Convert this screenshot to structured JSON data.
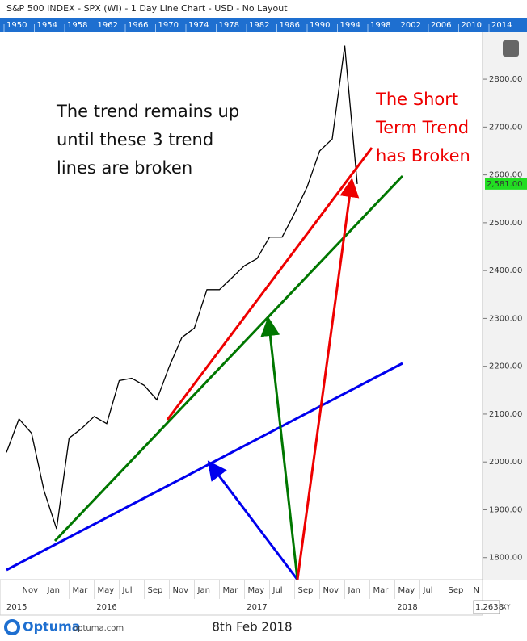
{
  "chart_data": {
    "type": "line",
    "title": "S&P 500 INDEX - SPX (WI) - 1 Day Line Chart - USD - No Layout",
    "overview_years": [
      "1950",
      "1954",
      "1958",
      "1962",
      "1966",
      "1970",
      "1974",
      "1978",
      "1982",
      "1986",
      "1990",
      "1994",
      "1998",
      "2002",
      "2006",
      "2010",
      "2014"
    ],
    "x": [
      "2015-10",
      "2015-11",
      "2015-12",
      "2016-01",
      "2016-02",
      "2016-03",
      "2016-04",
      "2016-05",
      "2016-06",
      "2016-07",
      "2016-08",
      "2016-09",
      "2016-10",
      "2016-11",
      "2016-12",
      "2017-01",
      "2017-02",
      "2017-03",
      "2017-04",
      "2017-05",
      "2017-06",
      "2017-07",
      "2017-08",
      "2017-09",
      "2017-10",
      "2017-11",
      "2017-12",
      "2018-01",
      "2018-02"
    ],
    "series": [
      {
        "name": "SPX",
        "color": "#000000",
        "values": [
          2020,
          2090,
          2060,
          1940,
          1860,
          2050,
          2070,
          2095,
          2080,
          2170,
          2175,
          2160,
          2130,
          2200,
          2260,
          2280,
          2360,
          2360,
          2385,
          2410,
          2425,
          2470,
          2470,
          2520,
          2575,
          2650,
          2675,
          2870,
          2581
        ]
      }
    ],
    "xlim": [
      "2015-10",
      "2018-12"
    ],
    "xticks": [
      {
        "value": "2015-11",
        "label": "Nov"
      },
      {
        "value": "2016-01",
        "label": "Jan"
      },
      {
        "value": "2016-03",
        "label": "Mar"
      },
      {
        "value": "2016-05",
        "label": "May"
      },
      {
        "value": "2016-07",
        "label": "Jul"
      },
      {
        "value": "2016-09",
        "label": "Sep"
      },
      {
        "value": "2016-11",
        "label": "Nov"
      },
      {
        "value": "2017-01",
        "label": "Jan"
      },
      {
        "value": "2017-03",
        "label": "Mar"
      },
      {
        "value": "2017-05",
        "label": "May"
      },
      {
        "value": "2017-07",
        "label": "Jul"
      },
      {
        "value": "2017-09",
        "label": "Sep"
      },
      {
        "value": "2017-11",
        "label": "Nov"
      },
      {
        "value": "2018-01",
        "label": "Jan"
      },
      {
        "value": "2018-03",
        "label": "Mar"
      },
      {
        "value": "2018-05",
        "label": "May"
      },
      {
        "value": "2018-07",
        "label": "Jul"
      },
      {
        "value": "2018-09",
        "label": "Sep"
      },
      {
        "value": "2018-11",
        "label": "N"
      }
    ],
    "year_labels": [
      {
        "value": "2015-10",
        "label": "2015"
      },
      {
        "value": "2016-06",
        "label": "2016"
      },
      {
        "value": "2017-06",
        "label": "2017"
      },
      {
        "value": "2018-06",
        "label": "2018"
      }
    ],
    "ylim": [
      1754,
      2898
    ],
    "yticks": [
      {
        "value": 1800,
        "label": "1800.00"
      },
      {
        "value": 1900,
        "label": "1900.00"
      },
      {
        "value": 2000,
        "label": "2000.00"
      },
      {
        "value": 2100,
        "label": "2100.00"
      },
      {
        "value": 2200,
        "label": "2200.00"
      },
      {
        "value": 2300,
        "label": "2300.00"
      },
      {
        "value": 2400,
        "label": "2400.00"
      },
      {
        "value": 2500,
        "label": "2500.00"
      },
      {
        "value": 2600,
        "label": "2600.00"
      },
      {
        "value": 2700,
        "label": "2700.00"
      },
      {
        "value": 2800,
        "label": "2800.00"
      }
    ],
    "last_price": {
      "value": 2581,
      "label": "2,581.00"
    },
    "annotations": {
      "trend_note": [
        "The trend remains up",
        "until these 3 trend",
        "lines are broken"
      ],
      "short_term_note": [
        "The Short",
        "Term Trend",
        "has Broken"
      ]
    },
    "footer": {
      "brand": "Optuma",
      "site": "optuma.com",
      "date": "8th Feb 2018",
      "zoom": "1.2638",
      "mode": "XY"
    }
  }
}
